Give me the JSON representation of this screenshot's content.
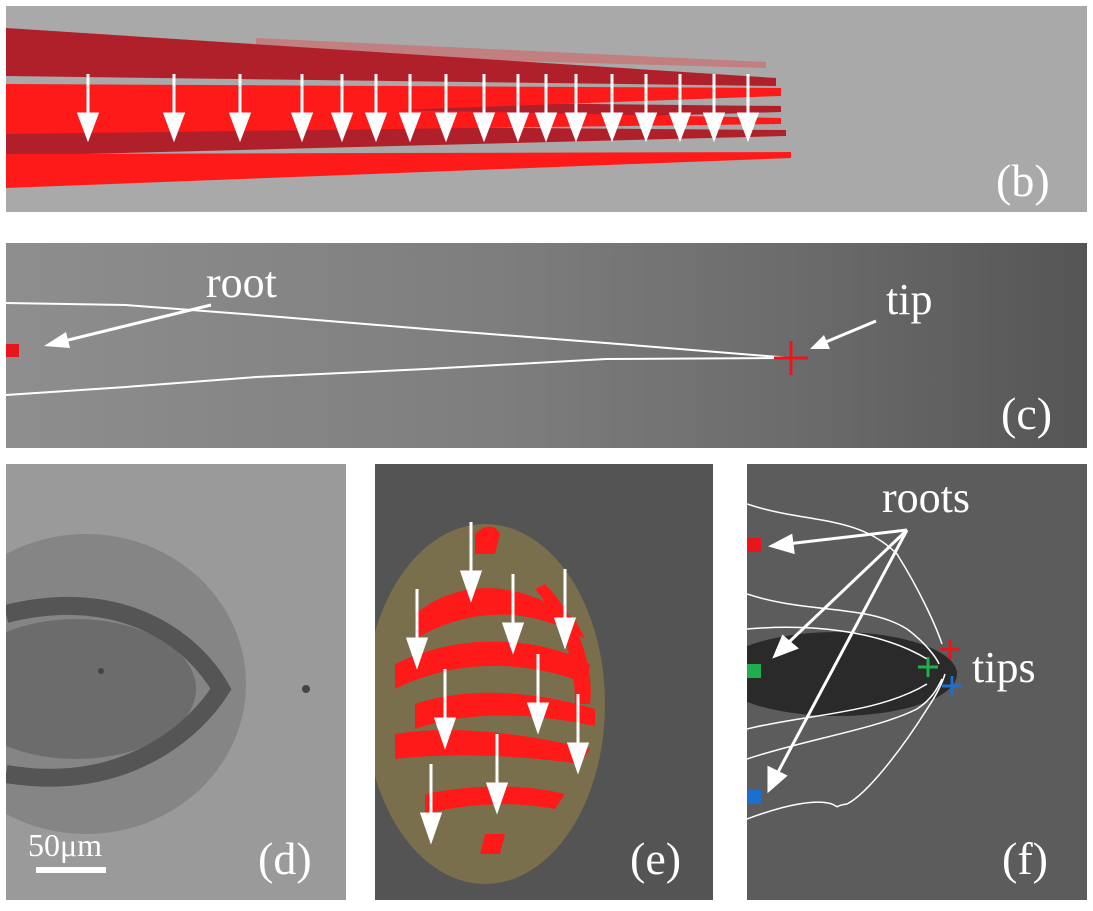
{
  "panels": {
    "b": {
      "label": "(b)"
    },
    "c": {
      "label": "(c)",
      "root_text": "root",
      "tip_text": "tip"
    },
    "d": {
      "label": "(d)",
      "scale_bar": "50μm"
    },
    "e": {
      "label": "(e)"
    },
    "f": {
      "label": "(f)",
      "roots_text": "roots",
      "tips_text": "tips"
    }
  },
  "colors": {
    "red_region": "#ff1a1a",
    "dark_red_region": "#b0202a",
    "faded_red_region": "#c47a7a",
    "arrow": "#ffffff",
    "marker_red": "#e8161c",
    "marker_green": "#1fae4e",
    "marker_blue": "#1b6fd1"
  }
}
